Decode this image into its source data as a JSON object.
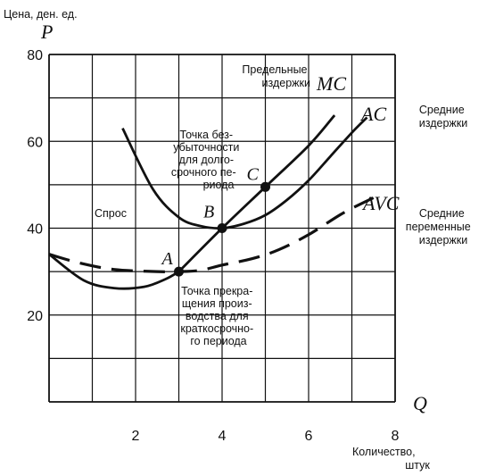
{
  "chart_data": {
    "type": "line",
    "y_axis_title": "Цена, ден. ед.",
    "y_axis_symbol": "P",
    "x_axis_symbol": "Q",
    "x_axis_title_lines": [
      "Количество,",
      "штук"
    ],
    "xlim": [
      0,
      8
    ],
    "ylim": [
      0,
      80
    ],
    "x_ticks": [
      2,
      4,
      6,
      8
    ],
    "y_ticks": [
      20,
      40,
      60,
      80
    ],
    "grid": true,
    "series": [
      {
        "name": "MC",
        "style": "solid",
        "points": [
          [
            1.7,
            63
          ],
          [
            2.4,
            49
          ],
          [
            3,
            42.5
          ],
          [
            3.5,
            40.5
          ],
          [
            4,
            40
          ],
          [
            4.5,
            41
          ],
          [
            5,
            43
          ],
          [
            5.5,
            46.5
          ],
          [
            6,
            51
          ],
          [
            6.5,
            56.5
          ],
          [
            7,
            62
          ],
          [
            7.35,
            65.5
          ]
        ]
      },
      {
        "name": "AC",
        "style": "solid",
        "points": [
          [
            3,
            30
          ],
          [
            4,
            40
          ],
          [
            5,
            49.5
          ],
          [
            6,
            59
          ],
          [
            6.6,
            66
          ]
        ]
      },
      {
        "name": "AVC",
        "style": "dashed",
        "points": [
          [
            0,
            34
          ],
          [
            0.7,
            32
          ],
          [
            1.5,
            30.5
          ],
          [
            2.5,
            30
          ],
          [
            3,
            30
          ],
          [
            3.5,
            30.3
          ],
          [
            4,
            31.5
          ],
          [
            4.7,
            33
          ],
          [
            5.3,
            35
          ],
          [
            6,
            38.5
          ],
          [
            6.8,
            43.5
          ],
          [
            7.5,
            47
          ]
        ]
      },
      {
        "name": "Спрос",
        "style": "solid",
        "points": [
          [
            0,
            34
          ],
          [
            0.8,
            28
          ],
          [
            1.5,
            26.2
          ],
          [
            2.2,
            26.5
          ],
          [
            2.7,
            28.3
          ],
          [
            3,
            30
          ]
        ]
      }
    ],
    "points": [
      {
        "label": "A",
        "x": 3,
        "y": 30
      },
      {
        "label": "B",
        "x": 4,
        "y": 40
      },
      {
        "label": "C",
        "x": 5,
        "y": 49.5
      }
    ],
    "curve_labels": {
      "MC": "MC",
      "AC": "AC",
      "AVC": "AVC"
    },
    "annotations": {
      "mc_text": [
        "Предельные",
        "издержки"
      ],
      "ac_text": [
        "Средние",
        "издержки"
      ],
      "avc_text": [
        "Средние",
        "переменные",
        "издержки"
      ],
      "demand_text": "Спрос",
      "breakeven_text": [
        "Точка без-",
        "убыточности",
        "для долго-",
        "срочного пе-",
        "риода"
      ],
      "shutdown_text": [
        "Точка прекра-",
        "щения произ-",
        "водства для",
        "краткосрочно-",
        "го периода"
      ]
    }
  }
}
